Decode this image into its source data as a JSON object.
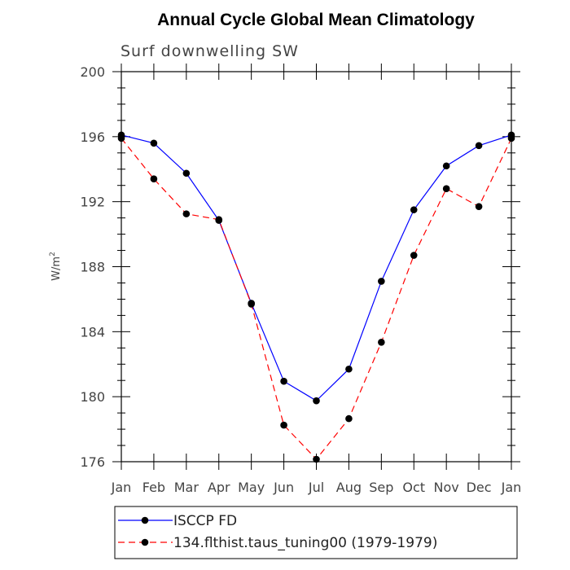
{
  "chart_data": {
    "type": "line",
    "title": "Annual Cycle Global Mean Climatology",
    "subtitle": "Surf downwelling SW",
    "ylabel": "W/m",
    "ylabel_sup": "2",
    "ylim": [
      176,
      200
    ],
    "yticks": [
      "176",
      "180",
      "184",
      "188",
      "192",
      "196",
      "200"
    ],
    "categories": [
      "Jan",
      "Feb",
      "Mar",
      "Apr",
      "May",
      "Jun",
      "Jul",
      "Aug",
      "Sep",
      "Oct",
      "Nov",
      "Dec",
      "Jan"
    ],
    "grid": false,
    "series": [
      {
        "name": "ISCCP FD",
        "color": "#0000ff",
        "dash": "solid",
        "values": [
          196.1,
          195.6,
          193.75,
          190.85,
          185.75,
          180.95,
          179.75,
          181.7,
          187.1,
          191.5,
          194.2,
          195.45,
          196.1
        ]
      },
      {
        "name": "134.flthist.taus_tuning00 (1979-1979)",
        "color": "#ff0000",
        "dash": "dashed",
        "values": [
          195.9,
          193.4,
          191.25,
          190.9,
          185.7,
          178.25,
          176.15,
          178.65,
          183.35,
          188.7,
          192.8,
          191.7,
          195.9
        ]
      }
    ]
  }
}
